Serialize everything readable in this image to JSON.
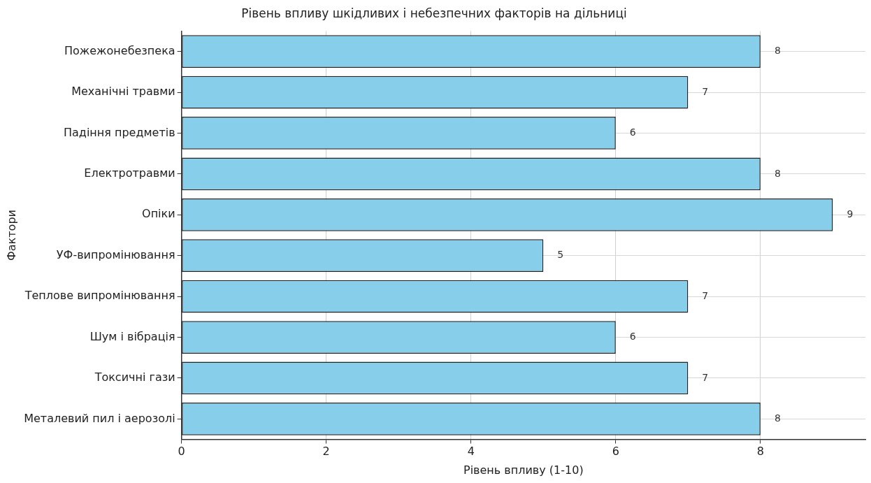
{
  "chart_data": {
    "type": "bar",
    "orientation": "horizontal",
    "title": "Рівень впливу шкідливих і небезпечних факторів на дільниці",
    "xlabel": "Рівень впливу (1-10)",
    "ylabel": "Фактори",
    "categories": [
      "Пожежонебезпека",
      "Механічні травми",
      "Падіння предметів",
      "Електротравми",
      "Опіки",
      "УФ-випромінювання",
      "Теплове випромінювання",
      "Шум і вібрація",
      "Токсичні гази",
      "Металевий пил і аерозолі"
    ],
    "values": [
      8,
      7,
      6,
      8,
      9,
      5,
      7,
      6,
      7,
      8
    ],
    "color": "#87ceeb",
    "xlim": [
      0,
      9.45
    ],
    "xticks": [
      0,
      2,
      4,
      6,
      8
    ],
    "grid": true,
    "data_labels": true,
    "legend": false
  }
}
